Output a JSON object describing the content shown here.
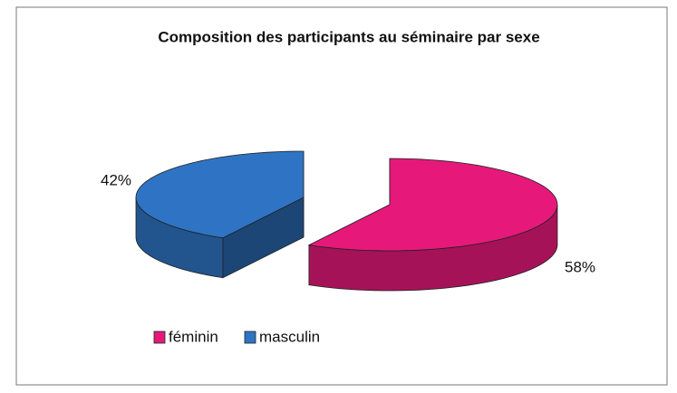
{
  "chart_data": {
    "type": "pie",
    "title": "Composition des participants au séminaire par sexe",
    "categories": [
      "féminin",
      "masculin"
    ],
    "values": [
      58,
      42
    ],
    "value_labels": [
      "58%",
      "42%"
    ],
    "colors": [
      "#e6197a",
      "#2f74c4"
    ],
    "legend": "bottom"
  }
}
